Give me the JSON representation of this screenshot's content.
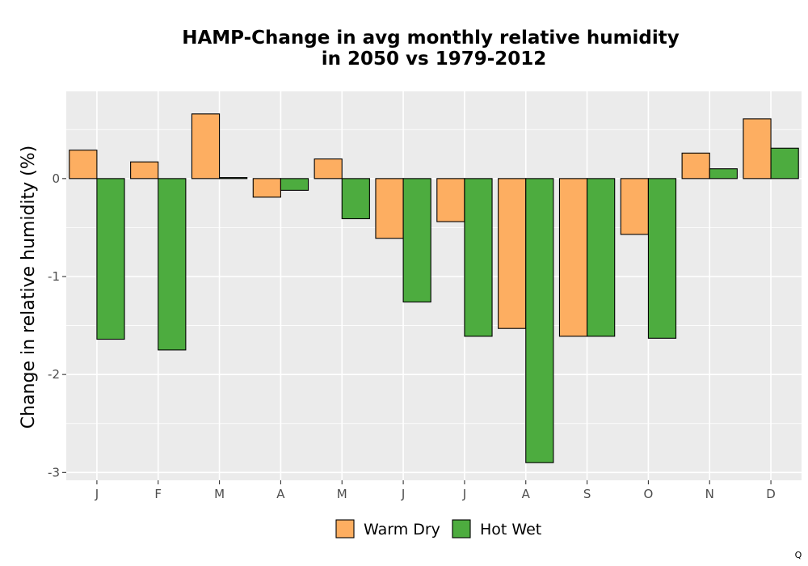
{
  "chart_data": {
    "type": "bar",
    "title": [
      "HAMP-Change in avg monthly relative humidity",
      "in 2050 vs 1979-2012"
    ],
    "xlabel": "",
    "ylabel": "Change in relative humidity (%)",
    "categories": [
      "J",
      "F",
      "M",
      "A",
      "M",
      "J",
      "J",
      "A",
      "S",
      "O",
      "N",
      "D"
    ],
    "series": [
      {
        "name": "Warm Dry",
        "color": "#FDAE61",
        "values": [
          0.29,
          0.17,
          0.66,
          -0.19,
          0.2,
          -0.61,
          -0.44,
          -1.53,
          -1.61,
          -0.57,
          0.26,
          0.61
        ]
      },
      {
        "name": "Hot Wet",
        "color": "#4DAC3F",
        "values": [
          -1.64,
          -1.75,
          0.01,
          -0.12,
          -0.41,
          -1.26,
          -1.61,
          -2.9,
          -1.61,
          -1.63,
          0.1,
          0.31
        ]
      }
    ],
    "ylim": [
      -3.08,
      0.89
    ],
    "yticks": [
      -3,
      -2,
      -1,
      0
    ],
    "ytick_labels": [
      "-3",
      "-2",
      "-1",
      "0"
    ],
    "grid": true,
    "legend_position": "bottom"
  },
  "corner_mark": "Q"
}
